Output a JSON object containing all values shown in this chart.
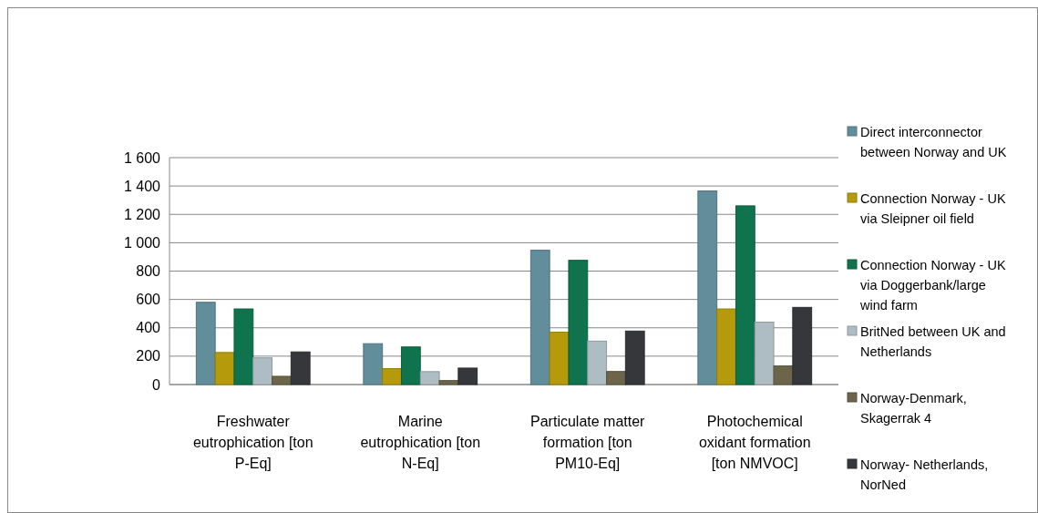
{
  "chart_data": {
    "type": "bar",
    "categories": [
      "Freshwater eutrophication [ton P-Eq]",
      "Marine eutrophication [ton N-Eq]",
      "Particulate matter formation [ton PM10-Eq]",
      "Photochemical oxidant formation [ton NMVOC]"
    ],
    "series": [
      {
        "name": "Direct interconnector between Norway and UK",
        "color": "#628d9b",
        "values": [
          580,
          288,
          947,
          1365
        ]
      },
      {
        "name": "Connection Norway - UK via Sleipner oil field",
        "color": "#b59b0b",
        "values": [
          226,
          112,
          369,
          533
        ]
      },
      {
        "name": "Connection Norway - UK via Doggerbank/large wind farm",
        "color": "#0f734d",
        "values": [
          533,
          265,
          876,
          1260
        ]
      },
      {
        "name": "BritNed between UK and Netherlands",
        "color": "#adbdc3",
        "values": [
          188,
          91,
          306,
          440
        ]
      },
      {
        "name": "Norway-Denmark, Skagerrak 4",
        "color": "#6d654a",
        "values": [
          58,
          28,
          92,
          131
        ]
      },
      {
        "name": "Norway- Netherlands, NorNed",
        "color": "#35373b",
        "values": [
          230,
          116,
          377,
          544
        ]
      }
    ],
    "ylim": [
      0,
      1600
    ],
    "yticks": [
      0,
      200,
      400,
      600,
      800,
      {
        "value": 1000,
        "label": "1 000"
      },
      {
        "value": 1200,
        "label": "1 200"
      },
      {
        "value": 1400,
        "label": "1 400"
      },
      {
        "value": 1600,
        "label": "1 600"
      }
    ],
    "grid": "y",
    "legend": "right"
  }
}
